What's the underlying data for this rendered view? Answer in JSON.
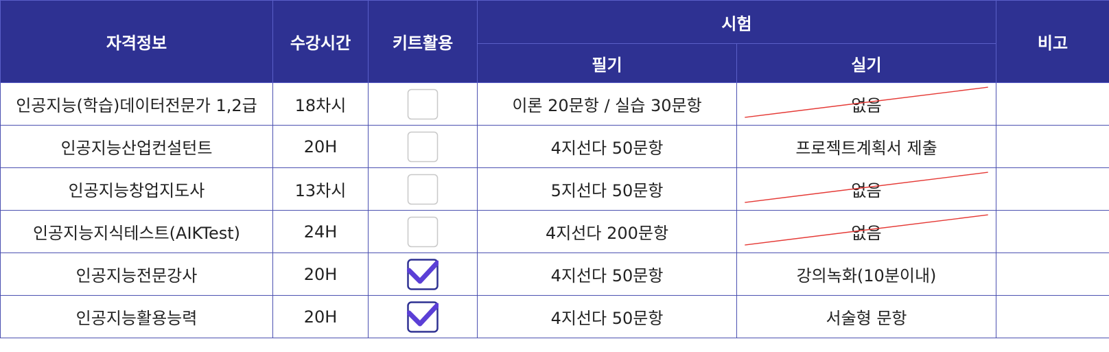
{
  "headers": {
    "cert": "자격정보",
    "hours": "수강시간",
    "kit": "키트활용",
    "exam": "시험",
    "written": "필기",
    "practical": "실기",
    "note": "비고"
  },
  "rows": [
    {
      "cert": "인공지능(학습)데이터전문가 1,2급",
      "hours": "18차시",
      "kit": false,
      "written": "이론 20문항 / 실습 30문항",
      "practical": "없음",
      "practical_struck": true,
      "note": ""
    },
    {
      "cert": "인공지능산업컨설턴트",
      "hours": "20H",
      "kit": false,
      "written": "4지선다 50문항",
      "practical": "프로젝트계획서 제출",
      "practical_struck": false,
      "note": ""
    },
    {
      "cert": "인공지능창업지도사",
      "hours": "13차시",
      "kit": false,
      "written": "5지선다 50문항",
      "practical": "없음",
      "practical_struck": true,
      "note": ""
    },
    {
      "cert": "인공지능지식테스트(AIKTest)",
      "hours": "24H",
      "kit": false,
      "written": "4지선다 200문항",
      "practical": "없음",
      "practical_struck": true,
      "note": ""
    },
    {
      "cert": "인공지능전문강사",
      "hours": "20H",
      "kit": true,
      "written": "4지선다 50문항",
      "practical": "강의녹화(10분이내)",
      "practical_struck": false,
      "note": ""
    },
    {
      "cert": "인공지능활용능력",
      "hours": "20H",
      "kit": true,
      "written": "4지선다 50문항",
      "practical": "서술형 문항",
      "practical_struck": false,
      "note": ""
    }
  ],
  "colors": {
    "header_bg": "#2e3192",
    "check": "#5b3fd6",
    "strike": "#e53935"
  }
}
